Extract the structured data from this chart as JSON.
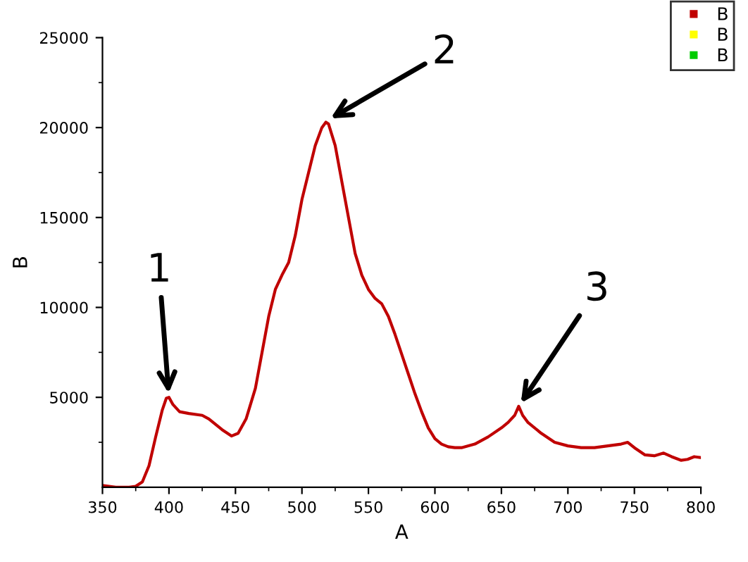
{
  "chart_data": {
    "type": "line",
    "xlabel": "A",
    "ylabel": "B",
    "xlim": [
      350,
      800
    ],
    "ylim": [
      0,
      25000
    ],
    "xticks": [
      350,
      400,
      450,
      500,
      550,
      600,
      650,
      700,
      750,
      800
    ],
    "yticks": [
      5000,
      10000,
      15000,
      20000,
      25000
    ],
    "grid": false,
    "legend": "top right",
    "marker": "none",
    "line_style": "solid",
    "series": [
      {
        "name": "B",
        "color": "#c00000",
        "x": [
          350,
          360,
          370,
          375,
          380,
          385,
          390,
          395,
          398,
          400,
          403,
          408,
          415,
          425,
          430,
          440,
          447,
          452,
          458,
          465,
          470,
          475,
          480,
          485,
          490,
          495,
          500,
          505,
          510,
          515,
          518,
          520,
          525,
          530,
          535,
          540,
          545,
          550,
          555,
          560,
          565,
          570,
          575,
          580,
          585,
          590,
          595,
          600,
          605,
          610,
          615,
          620,
          630,
          640,
          650,
          655,
          660,
          663,
          666,
          670,
          680,
          690,
          700,
          710,
          720,
          730,
          740,
          745,
          750,
          758,
          765,
          772,
          778,
          785,
          790,
          795,
          800
        ],
        "values": [
          100,
          0,
          0,
          50,
          300,
          1200,
          2800,
          4300,
          4950,
          5000,
          4600,
          4200,
          4100,
          4000,
          3800,
          3200,
          2850,
          3000,
          3800,
          5500,
          7500,
          9500,
          11000,
          11800,
          12500,
          14000,
          16000,
          17500,
          19000,
          20000,
          20300,
          20200,
          19000,
          17000,
          15000,
          13000,
          11800,
          11000,
          10500,
          10200,
          9500,
          8500,
          7400,
          6300,
          5200,
          4200,
          3300,
          2700,
          2400,
          2250,
          2200,
          2200,
          2400,
          2800,
          3300,
          3600,
          4000,
          4500,
          4000,
          3600,
          3000,
          2500,
          2300,
          2200,
          2200,
          2300,
          2400,
          2500,
          2200,
          1800,
          1750,
          1900,
          1700,
          1500,
          1550,
          1700,
          1650
        ]
      },
      {
        "name": "B",
        "color": "#ffff00"
      },
      {
        "name": "B",
        "color": "#00cc00"
      }
    ],
    "annotations": [
      {
        "text": "1",
        "x": 400,
        "y": 5000
      },
      {
        "text": "2",
        "x": 519,
        "y": 20400
      },
      {
        "text": "3",
        "x": 663,
        "y": 4500
      }
    ]
  }
}
